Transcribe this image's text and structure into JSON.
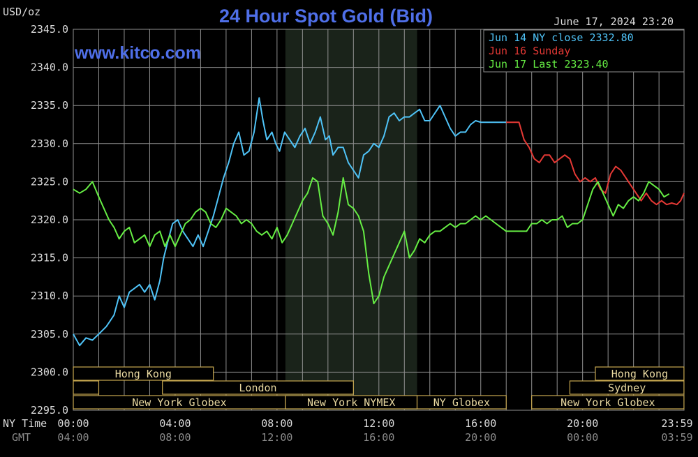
{
  "colors": {
    "background": "#000000",
    "grid": "#8f8f8f",
    "title": "#4f6fe8",
    "site": "#4f6fe8",
    "text": "#dcdcdc",
    "gmt_text": "#8c8c8c",
    "night_band": "#1a231a",
    "session_box": "#c8a850",
    "session_text": "#e8d8a0",
    "jun14": "#4fc3f7",
    "jun16": "#e53935",
    "jun17": "#66ee44"
  },
  "header": {
    "title": "24 Hour Spot Gold (Bid)",
    "unit": "USD/oz",
    "timestamp": "June 17, 2024 23:20",
    "site": "www.kitco.com"
  },
  "axes": {
    "ny_time_label": "NY Time",
    "gmt_label": "GMT",
    "gmt_ticks": [
      "04:00",
      "08:00",
      "12:00",
      "16:00",
      "20:00",
      "00:00",
      "03:59"
    ]
  },
  "sessions": [
    {
      "label": "Hong Kong",
      "from": 0.0,
      "to": 5.5,
      "row": 0
    },
    {
      "label": "",
      "from": 0.0,
      "to": 1.0,
      "row": 1
    },
    {
      "label": "London",
      "from": 3.5,
      "to": 11.0,
      "row": 1
    },
    {
      "label": "New York Globex",
      "from": 0.0,
      "to": 8.33,
      "row": 2
    },
    {
      "label": "New York NYMEX",
      "from": 8.33,
      "to": 13.5,
      "row": 2
    },
    {
      "label": "NY Globex",
      "from": 13.5,
      "to": 17.0,
      "row": 2
    },
    {
      "label": "Hong Kong",
      "from": 20.5,
      "to": 23.98,
      "row": 0
    },
    {
      "label": "Sydney",
      "from": 19.5,
      "to": 23.98,
      "row": 1
    },
    {
      "label": "New York Globex",
      "from": 18.0,
      "to": 23.98,
      "row": 2
    }
  ],
  "night_band": {
    "from": 8.33,
    "to": 13.5
  },
  "chart_data": {
    "type": "line",
    "title": "24 Hour Spot Gold (Bid)",
    "ylabel": "USD/oz",
    "xlabel": "NY Time",
    "ylim": [
      2295.0,
      2345.0
    ],
    "xlim": [
      0,
      23.983
    ],
    "y_ticks": [
      "2295.0",
      "2300.0",
      "2305.0",
      "2310.0",
      "2315.0",
      "2320.0",
      "2325.0",
      "2330.0",
      "2335.0",
      "2340.0",
      "2345.0"
    ],
    "x_ticks": [
      {
        "x": 0,
        "label": "00:00"
      },
      {
        "x": 4,
        "label": "04:00"
      },
      {
        "x": 8,
        "label": "08:00"
      },
      {
        "x": 12,
        "label": "12:00"
      },
      {
        "x": 16,
        "label": "16:00"
      },
      {
        "x": 20,
        "label": "20:00"
      },
      {
        "x": 23.983,
        "label": "23:59"
      }
    ],
    "grid": true,
    "legend_position": "top-right",
    "legend_labels": [
      "Jun 14 NY close 2332.80",
      "Jun 16 Sunday",
      "Jun 17 Last 2323.40"
    ],
    "series": [
      {
        "name": "Jun 14 NY close 2332.80",
        "color": "#4fc3f7",
        "x": [
          0.0,
          0.25,
          0.5,
          0.75,
          1.0,
          1.3,
          1.6,
          1.8,
          2.0,
          2.2,
          2.4,
          2.6,
          2.8,
          3.0,
          3.2,
          3.4,
          3.55,
          3.7,
          3.9,
          4.1,
          4.3,
          4.5,
          4.7,
          4.9,
          5.1,
          5.3,
          5.5,
          5.7,
          5.9,
          6.1,
          6.3,
          6.5,
          6.7,
          6.9,
          7.1,
          7.3,
          7.45,
          7.6,
          7.8,
          7.95,
          8.1,
          8.3,
          8.5,
          8.7,
          8.9,
          9.1,
          9.3,
          9.5,
          9.7,
          9.9,
          10.05,
          10.2,
          10.4,
          10.6,
          10.8,
          11.0,
          11.2,
          11.4,
          11.6,
          11.8,
          12.0,
          12.2,
          12.4,
          12.6,
          12.8,
          13.0,
          13.2,
          13.4,
          13.6,
          13.8,
          14.0,
          14.2,
          14.4,
          14.6,
          14.8,
          15.0,
          15.2,
          15.4,
          15.6,
          15.8,
          16.0,
          16.2,
          16.4,
          16.6,
          16.8,
          17.0
        ],
        "values": [
          2305.0,
          2303.5,
          2304.5,
          2304.2,
          2305.0,
          2306.0,
          2307.5,
          2310.0,
          2308.5,
          2310.5,
          2311.0,
          2311.5,
          2310.5,
          2311.5,
          2309.5,
          2312.0,
          2315.0,
          2317.0,
          2319.5,
          2320.0,
          2318.5,
          2317.5,
          2316.5,
          2318.0,
          2316.5,
          2318.5,
          2320.5,
          2323.0,
          2325.5,
          2327.5,
          2330.0,
          2331.5,
          2328.5,
          2329.0,
          2331.5,
          2336.0,
          2333.0,
          2330.5,
          2331.5,
          2330.0,
          2329.0,
          2331.5,
          2330.5,
          2329.5,
          2331.0,
          2332.0,
          2330.0,
          2331.5,
          2333.5,
          2330.5,
          2331.0,
          2328.5,
          2329.5,
          2329.5,
          2327.5,
          2326.5,
          2325.5,
          2328.5,
          2329.0,
          2330.0,
          2329.5,
          2331.0,
          2333.5,
          2334.0,
          2333.0,
          2333.5,
          2333.5,
          2334.0,
          2334.5,
          2333.0,
          2333.0,
          2334.0,
          2335.0,
          2333.5,
          2332.0,
          2331.0,
          2331.5,
          2331.5,
          2332.5,
          2333.0,
          2332.8,
          2332.8,
          2332.8,
          2332.8,
          2332.8,
          2332.8
        ]
      },
      {
        "name": "Jun 16 Sunday",
        "color": "#e53935",
        "x": [
          17.0,
          17.25,
          17.5,
          17.7,
          17.9,
          18.1,
          18.3,
          18.5,
          18.7,
          18.9,
          19.1,
          19.3,
          19.5,
          19.7,
          19.9,
          20.1,
          20.3,
          20.5,
          20.7,
          20.9,
          21.1,
          21.3,
          21.5,
          21.7,
          21.9,
          22.1,
          22.3,
          22.5,
          22.7,
          22.9,
          23.1,
          23.3,
          23.5,
          23.7,
          23.85,
          23.983
        ],
        "values": [
          2332.8,
          2332.8,
          2332.8,
          2330.5,
          2329.5,
          2328.0,
          2327.5,
          2328.5,
          2328.5,
          2327.5,
          2328.0,
          2328.5,
          2328.0,
          2326.0,
          2325.0,
          2325.5,
          2325.0,
          2325.5,
          2324.0,
          2323.5,
          2326.0,
          2327.0,
          2326.5,
          2325.5,
          2324.5,
          2323.5,
          2322.5,
          2323.5,
          2322.5,
          2322.0,
          2322.5,
          2322.0,
          2322.2,
          2322.0,
          2322.5,
          2323.5
        ]
      },
      {
        "name": "Jun 17 Last 2323.40",
        "color": "#66ee44",
        "x": [
          0.0,
          0.25,
          0.5,
          0.75,
          1.0,
          1.2,
          1.4,
          1.6,
          1.8,
          2.0,
          2.2,
          2.4,
          2.6,
          2.8,
          3.0,
          3.2,
          3.4,
          3.6,
          3.8,
          4.0,
          4.2,
          4.4,
          4.6,
          4.8,
          5.0,
          5.2,
          5.4,
          5.6,
          5.8,
          6.0,
          6.2,
          6.4,
          6.6,
          6.8,
          7.0,
          7.2,
          7.4,
          7.6,
          7.8,
          8.0,
          8.2,
          8.4,
          8.6,
          8.8,
          9.0,
          9.2,
          9.4,
          9.6,
          9.8,
          10.0,
          10.2,
          10.4,
          10.6,
          10.8,
          11.0,
          11.2,
          11.4,
          11.6,
          11.8,
          12.0,
          12.2,
          12.4,
          12.6,
          12.8,
          13.0,
          13.2,
          13.4,
          13.6,
          13.8,
          14.0,
          14.2,
          14.4,
          14.6,
          14.8,
          15.0,
          15.2,
          15.4,
          15.6,
          15.8,
          16.0,
          16.2,
          16.4,
          16.6,
          16.8,
          17.0,
          17.2,
          17.4,
          17.6,
          17.8,
          18.0,
          18.2,
          18.4,
          18.6,
          18.8,
          19.0,
          19.2,
          19.4,
          19.6,
          19.8,
          20.0,
          20.2,
          20.4,
          20.6,
          20.8,
          21.0,
          21.2,
          21.4,
          21.6,
          21.8,
          22.0,
          22.2,
          22.4,
          22.6,
          22.8,
          23.0,
          23.2,
          23.4
        ],
        "values": [
          2324.0,
          2323.5,
          2324.0,
          2325.0,
          2323.0,
          2321.5,
          2320.0,
          2319.0,
          2317.5,
          2318.5,
          2319.0,
          2317.0,
          2317.5,
          2318.0,
          2316.5,
          2318.0,
          2318.5,
          2316.5,
          2318.0,
          2316.5,
          2318.0,
          2319.5,
          2320.0,
          2321.0,
          2321.5,
          2321.0,
          2319.5,
          2319.0,
          2320.0,
          2321.5,
          2321.0,
          2320.5,
          2319.5,
          2320.0,
          2319.5,
          2318.5,
          2318.0,
          2318.5,
          2317.5,
          2319.0,
          2317.0,
          2318.0,
          2319.5,
          2321.0,
          2322.5,
          2323.5,
          2325.5,
          2325.0,
          2320.5,
          2319.5,
          2318.0,
          2321.0,
          2325.5,
          2322.0,
          2321.5,
          2320.5,
          2318.5,
          2313.0,
          2309.0,
          2310.0,
          2312.5,
          2314.0,
          2315.5,
          2317.0,
          2318.5,
          2315.0,
          2316.0,
          2317.5,
          2317.0,
          2318.0,
          2318.5,
          2318.5,
          2319.0,
          2319.5,
          2319.0,
          2319.5,
          2319.5,
          2320.0,
          2320.5,
          2320.0,
          2320.5,
          2320.0,
          2319.5,
          2319.0,
          2318.5,
          2318.5,
          2318.5,
          2318.5,
          2318.5,
          2319.5,
          2319.5,
          2320.0,
          2319.5,
          2320.0,
          2320.0,
          2320.5,
          2319.0,
          2319.5,
          2319.5,
          2320.0,
          2322.0,
          2324.0,
          2325.0,
          2323.5,
          2322.0,
          2320.5,
          2322.0,
          2321.5,
          2322.5,
          2323.0,
          2322.5,
          2323.5,
          2325.0,
          2324.5,
          2324.0,
          2323.0,
          2323.4
        ]
      }
    ]
  }
}
